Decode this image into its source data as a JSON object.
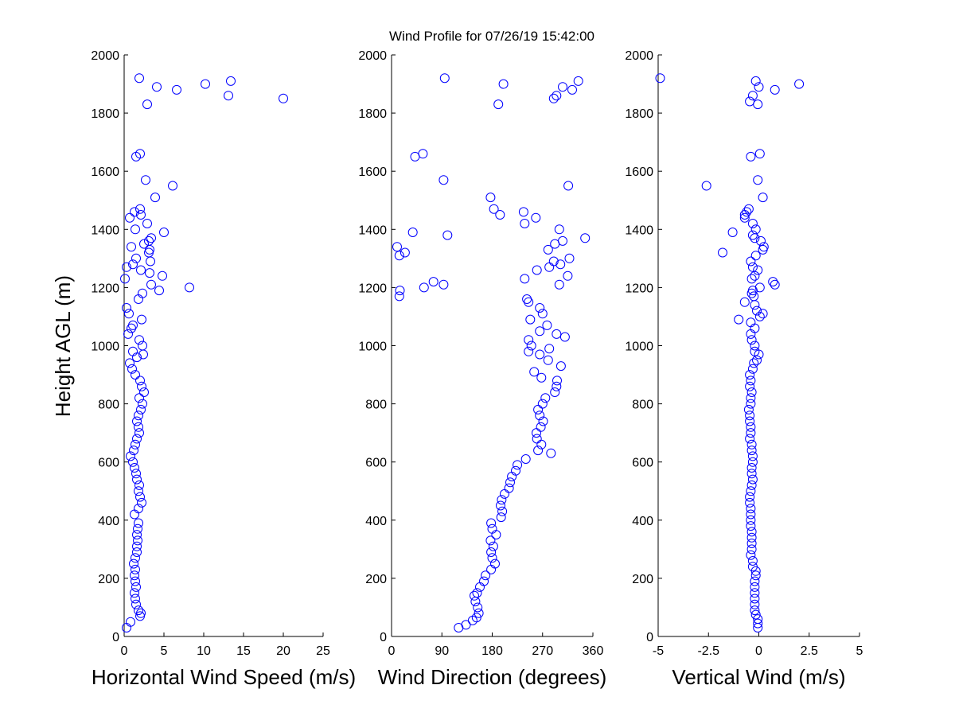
{
  "figure": {
    "title": "Wind Profile for  07/26/19 15:42:00",
    "ylabel": "Height AGL (m)"
  },
  "chart_data": [
    {
      "type": "scatter",
      "xlabel": "Horizontal Wind Speed (m/s)",
      "ylabel": "Height AGL (m)",
      "xlim": [
        0,
        25
      ],
      "ylim": [
        0,
        2000
      ],
      "xticks": [
        0,
        5,
        10,
        15,
        20,
        25
      ],
      "xtick_labels": [
        "0",
        "5",
        "10",
        "15",
        "20",
        "25"
      ],
      "yticks": [
        0,
        200,
        400,
        600,
        800,
        1000,
        1200,
        1400,
        1600,
        1800,
        2000
      ],
      "ytick_labels": [
        "0",
        "200",
        "400",
        "600",
        "800",
        "1000",
        "1200",
        "1400",
        "1600",
        "1800",
        "2000"
      ],
      "marker": "circle",
      "color": "#0000ff",
      "points": [
        [
          0.3,
          30
        ],
        [
          0.8,
          50
        ],
        [
          2.0,
          70
        ],
        [
          2.1,
          80
        ],
        [
          1.8,
          90
        ],
        [
          1.5,
          110
        ],
        [
          1.4,
          130
        ],
        [
          1.3,
          150
        ],
        [
          1.5,
          170
        ],
        [
          1.4,
          190
        ],
        [
          1.3,
          210
        ],
        [
          1.4,
          230
        ],
        [
          1.2,
          250
        ],
        [
          1.4,
          270
        ],
        [
          1.6,
          290
        ],
        [
          1.6,
          310
        ],
        [
          1.7,
          330
        ],
        [
          1.6,
          350
        ],
        [
          1.7,
          370
        ],
        [
          1.8,
          390
        ],
        [
          1.3,
          420
        ],
        [
          1.8,
          440
        ],
        [
          2.2,
          460
        ],
        [
          2.0,
          480
        ],
        [
          1.8,
          500
        ],
        [
          1.9,
          520
        ],
        [
          1.6,
          540
        ],
        [
          1.5,
          560
        ],
        [
          1.3,
          580
        ],
        [
          1.1,
          600
        ],
        [
          0.8,
          620
        ],
        [
          1.2,
          640
        ],
        [
          1.4,
          660
        ],
        [
          1.6,
          680
        ],
        [
          1.9,
          700
        ],
        [
          1.8,
          720
        ],
        [
          1.6,
          740
        ],
        [
          1.8,
          760
        ],
        [
          2.1,
          780
        ],
        [
          2.3,
          800
        ],
        [
          1.9,
          820
        ],
        [
          2.5,
          840
        ],
        [
          2.2,
          860
        ],
        [
          2.0,
          880
        ],
        [
          1.4,
          900
        ],
        [
          1.0,
          920
        ],
        [
          0.7,
          940
        ],
        [
          1.6,
          960
        ],
        [
          2.4,
          970
        ],
        [
          1.1,
          980
        ],
        [
          2.3,
          1000
        ],
        [
          1.9,
          1020
        ],
        [
          0.5,
          1040
        ],
        [
          0.9,
          1060
        ],
        [
          1.1,
          1070
        ],
        [
          2.2,
          1090
        ],
        [
          0.6,
          1110
        ],
        [
          0.3,
          1130
        ],
        [
          1.8,
          1160
        ],
        [
          2.3,
          1180
        ],
        [
          8.2,
          1200
        ],
        [
          4.4,
          1190
        ],
        [
          3.4,
          1210
        ],
        [
          0.1,
          1230
        ],
        [
          4.8,
          1240
        ],
        [
          3.2,
          1250
        ],
        [
          2.1,
          1260
        ],
        [
          0.3,
          1270
        ],
        [
          1.1,
          1280
        ],
        [
          3.3,
          1290
        ],
        [
          1.5,
          1300
        ],
        [
          3.1,
          1320
        ],
        [
          3.2,
          1330
        ],
        [
          0.9,
          1340
        ],
        [
          2.5,
          1350
        ],
        [
          3.1,
          1360
        ],
        [
          3.4,
          1370
        ],
        [
          5.0,
          1390
        ],
        [
          1.4,
          1400
        ],
        [
          2.9,
          1420
        ],
        [
          0.7,
          1440
        ],
        [
          2.1,
          1450
        ],
        [
          1.3,
          1460
        ],
        [
          2.0,
          1470
        ],
        [
          3.9,
          1510
        ],
        [
          6.1,
          1550
        ],
        [
          2.7,
          1570
        ],
        [
          1.5,
          1650
        ],
        [
          2.0,
          1660
        ],
        [
          2.9,
          1830
        ],
        [
          20.0,
          1850
        ],
        [
          13.1,
          1860
        ],
        [
          6.6,
          1880
        ],
        [
          4.1,
          1890
        ],
        [
          10.2,
          1900
        ],
        [
          13.4,
          1910
        ],
        [
          1.9,
          1920
        ]
      ]
    },
    {
      "type": "scatter",
      "xlabel": "Wind Direction (degrees)",
      "xlim": [
        0,
        360
      ],
      "ylim": [
        0,
        2000
      ],
      "xticks": [
        0,
        90,
        180,
        270,
        360
      ],
      "xtick_labels": [
        "0",
        "90",
        "180",
        "270",
        "360"
      ],
      "yticks": [
        0,
        200,
        400,
        600,
        800,
        1000,
        1200,
        1400,
        1600,
        1800,
        2000
      ],
      "ytick_labels": [
        "0",
        "200",
        "400",
        "600",
        "800",
        "1000",
        "1200",
        "1400",
        "1600",
        "1800",
        "2000"
      ],
      "marker": "circle",
      "color": "#0000ff",
      "points": [
        [
          120,
          30
        ],
        [
          133,
          40
        ],
        [
          145,
          55
        ],
        [
          152,
          65
        ],
        [
          156,
          80
        ],
        [
          154,
          100
        ],
        [
          150,
          120
        ],
        [
          148,
          140
        ],
        [
          153,
          150
        ],
        [
          158,
          170
        ],
        [
          165,
          190
        ],
        [
          168,
          210
        ],
        [
          178,
          230
        ],
        [
          185,
          250
        ],
        [
          180,
          270
        ],
        [
          178,
          290
        ],
        [
          182,
          310
        ],
        [
          177,
          330
        ],
        [
          187,
          350
        ],
        [
          180,
          370
        ],
        [
          178,
          390
        ],
        [
          196,
          410
        ],
        [
          198,
          430
        ],
        [
          195,
          450
        ],
        [
          197,
          470
        ],
        [
          202,
          490
        ],
        [
          210,
          510
        ],
        [
          212,
          530
        ],
        [
          215,
          550
        ],
        [
          222,
          570
        ],
        [
          225,
          590
        ],
        [
          240,
          610
        ],
        [
          285,
          630
        ],
        [
          262,
          640
        ],
        [
          268,
          660
        ],
        [
          260,
          680
        ],
        [
          259,
          700
        ],
        [
          267,
          720
        ],
        [
          271,
          740
        ],
        [
          265,
          760
        ],
        [
          262,
          780
        ],
        [
          270,
          800
        ],
        [
          275,
          820
        ],
        [
          292,
          840
        ],
        [
          295,
          860
        ],
        [
          296,
          880
        ],
        [
          268,
          890
        ],
        [
          255,
          910
        ],
        [
          303,
          930
        ],
        [
          280,
          950
        ],
        [
          265,
          970
        ],
        [
          245,
          980
        ],
        [
          282,
          990
        ],
        [
          250,
          1000
        ],
        [
          245,
          1020
        ],
        [
          310,
          1030
        ],
        [
          295,
          1040
        ],
        [
          265,
          1050
        ],
        [
          278,
          1070
        ],
        [
          248,
          1090
        ],
        [
          270,
          1110
        ],
        [
          265,
          1130
        ],
        [
          245,
          1150
        ],
        [
          242,
          1160
        ],
        [
          14,
          1170
        ],
        [
          15,
          1190
        ],
        [
          58,
          1200
        ],
        [
          300,
          1210
        ],
        [
          93,
          1210
        ],
        [
          75,
          1220
        ],
        [
          238,
          1230
        ],
        [
          315,
          1240
        ],
        [
          260,
          1260
        ],
        [
          282,
          1270
        ],
        [
          302,
          1280
        ],
        [
          290,
          1290
        ],
        [
          318,
          1300
        ],
        [
          14,
          1310
        ],
        [
          24,
          1320
        ],
        [
          280,
          1330
        ],
        [
          10,
          1340
        ],
        [
          292,
          1350
        ],
        [
          306,
          1360
        ],
        [
          346,
          1370
        ],
        [
          100,
          1380
        ],
        [
          38,
          1390
        ],
        [
          300,
          1400
        ],
        [
          238,
          1420
        ],
        [
          258,
          1440
        ],
        [
          194,
          1450
        ],
        [
          236,
          1460
        ],
        [
          183,
          1470
        ],
        [
          177,
          1510
        ],
        [
          316,
          1550
        ],
        [
          93,
          1570
        ],
        [
          42,
          1650
        ],
        [
          56,
          1660
        ],
        [
          191,
          1830
        ],
        [
          290,
          1850
        ],
        [
          295,
          1860
        ],
        [
          323,
          1880
        ],
        [
          306,
          1890
        ],
        [
          200,
          1900
        ],
        [
          334,
          1910
        ],
        [
          95,
          1920
        ]
      ]
    },
    {
      "type": "scatter",
      "xlabel": "Vertical Wind (m/s)",
      "xlim": [
        -5,
        5
      ],
      "ylim": [
        0,
        2000
      ],
      "xticks": [
        -5,
        -2.5,
        0,
        2.5,
        5
      ],
      "xtick_labels": [
        "-5",
        "-2.5",
        "0",
        "2.5",
        "5"
      ],
      "yticks": [
        0,
        200,
        400,
        600,
        800,
        1000,
        1200,
        1400,
        1600,
        1800,
        2000
      ],
      "ytick_labels": [
        "0",
        "200",
        "400",
        "600",
        "800",
        "1000",
        "1200",
        "1400",
        "1600",
        "1800",
        "2000"
      ],
      "marker": "circle",
      "color": "#0000ff",
      "points": [
        [
          -0.05,
          30
        ],
        [
          -0.05,
          45
        ],
        [
          -0.05,
          60
        ],
        [
          -0.15,
          75
        ],
        [
          -0.2,
          90
        ],
        [
          -0.2,
          110
        ],
        [
          -0.2,
          130
        ],
        [
          -0.2,
          150
        ],
        [
          -0.2,
          170
        ],
        [
          -0.2,
          190
        ],
        [
          -0.15,
          210
        ],
        [
          -0.15,
          225
        ],
        [
          -0.3,
          240
        ],
        [
          -0.3,
          260
        ],
        [
          -0.4,
          280
        ],
        [
          -0.35,
          300
        ],
        [
          -0.35,
          320
        ],
        [
          -0.35,
          340
        ],
        [
          -0.35,
          360
        ],
        [
          -0.4,
          380
        ],
        [
          -0.4,
          400
        ],
        [
          -0.4,
          420
        ],
        [
          -0.4,
          440
        ],
        [
          -0.45,
          460
        ],
        [
          -0.45,
          480
        ],
        [
          -0.4,
          500
        ],
        [
          -0.35,
          520
        ],
        [
          -0.3,
          540
        ],
        [
          -0.35,
          560
        ],
        [
          -0.35,
          580
        ],
        [
          -0.3,
          600
        ],
        [
          -0.3,
          620
        ],
        [
          -0.35,
          640
        ],
        [
          -0.35,
          660
        ],
        [
          -0.45,
          680
        ],
        [
          -0.4,
          700
        ],
        [
          -0.4,
          720
        ],
        [
          -0.45,
          740
        ],
        [
          -0.45,
          760
        ],
        [
          -0.5,
          780
        ],
        [
          -0.4,
          800
        ],
        [
          -0.4,
          820
        ],
        [
          -0.35,
          840
        ],
        [
          -0.45,
          860
        ],
        [
          -0.4,
          880
        ],
        [
          -0.45,
          900
        ],
        [
          -0.3,
          920
        ],
        [
          -0.25,
          940
        ],
        [
          -0.1,
          950
        ],
        [
          0,
          970
        ],
        [
          -0.2,
          980
        ],
        [
          -0.2,
          1000
        ],
        [
          -0.35,
          1020
        ],
        [
          -0.4,
          1040
        ],
        [
          -0.2,
          1060
        ],
        [
          -0.4,
          1080
        ],
        [
          -1.0,
          1090
        ],
        [
          0.05,
          1100
        ],
        [
          0.2,
          1110
        ],
        [
          -0.1,
          1120
        ],
        [
          -0.2,
          1140
        ],
        [
          -0.7,
          1150
        ],
        [
          -0.25,
          1170
        ],
        [
          -0.35,
          1180
        ],
        [
          -0.3,
          1190
        ],
        [
          0.05,
          1200
        ],
        [
          0.8,
          1210
        ],
        [
          0.7,
          1220
        ],
        [
          -0.35,
          1230
        ],
        [
          -0.2,
          1240
        ],
        [
          -0.05,
          1260
        ],
        [
          -0.3,
          1270
        ],
        [
          -0.4,
          1290
        ],
        [
          -0.15,
          1310
        ],
        [
          -1.8,
          1320
        ],
        [
          0.2,
          1330
        ],
        [
          0.25,
          1340
        ],
        [
          0.1,
          1360
        ],
        [
          -0.2,
          1370
        ],
        [
          -0.3,
          1380
        ],
        [
          -1.3,
          1390
        ],
        [
          -0.15,
          1400
        ],
        [
          -0.3,
          1420
        ],
        [
          -0.7,
          1440
        ],
        [
          -0.7,
          1450
        ],
        [
          -0.6,
          1460
        ],
        [
          -0.5,
          1470
        ],
        [
          0.2,
          1510
        ],
        [
          -2.6,
          1550
        ],
        [
          -0.05,
          1570
        ],
        [
          -0.4,
          1650
        ],
        [
          0.05,
          1660
        ],
        [
          -0.05,
          1830
        ],
        [
          -0.45,
          1840
        ],
        [
          -0.3,
          1860
        ],
        [
          0.8,
          1880
        ],
        [
          0,
          1890
        ],
        [
          2.0,
          1900
        ],
        [
          -0.15,
          1910
        ],
        [
          -4.9,
          1920
        ]
      ]
    }
  ]
}
